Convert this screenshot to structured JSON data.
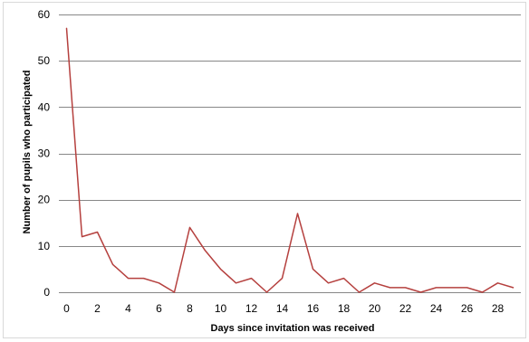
{
  "chart_data": {
    "type": "line",
    "title": "",
    "xlabel": "Days since invitation was received",
    "ylabel": "Number of pupils who participated",
    "x": [
      0,
      1,
      2,
      3,
      4,
      5,
      6,
      7,
      8,
      9,
      10,
      11,
      12,
      13,
      14,
      15,
      16,
      17,
      18,
      19,
      20,
      21,
      22,
      23,
      24,
      25,
      26,
      27,
      28,
      29
    ],
    "series": [
      {
        "values": [
          57,
          12,
          13,
          6,
          3,
          3,
          2,
          0,
          14,
          9,
          5,
          2,
          3,
          0,
          3,
          17,
          5,
          2,
          3,
          0,
          2,
          1,
          1,
          0,
          1,
          1,
          1,
          0,
          2,
          1
        ]
      }
    ],
    "xticks": [
      "0",
      "2",
      "4",
      "6",
      "8",
      "10",
      "12",
      "14",
      "16",
      "18",
      "20",
      "22",
      "24",
      "26",
      "28"
    ],
    "yticks": [
      "0",
      "10",
      "20",
      "30",
      "40",
      "50",
      "60"
    ],
    "xlim": [
      -0.5,
      29.5
    ],
    "ylim": [
      0,
      60
    ],
    "grid": "horizontal",
    "legend": "none",
    "line_color": "#b5403e",
    "grid_color": "#878787"
  }
}
